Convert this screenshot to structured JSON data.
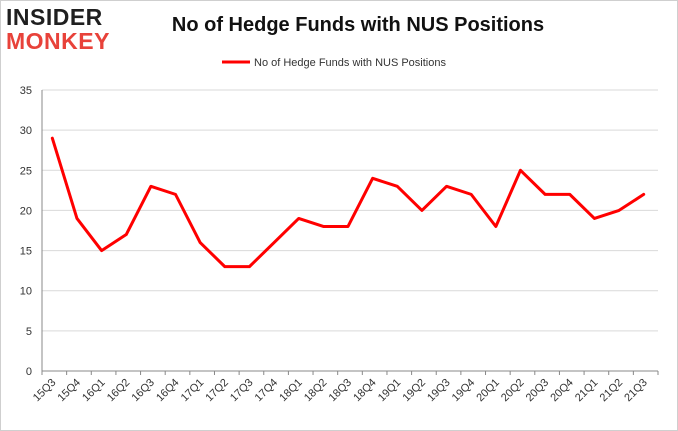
{
  "logo": {
    "line1": "INSIDER",
    "line2": "MONKEY"
  },
  "colors": {
    "series": "#ff0000",
    "grid": "#d9d9d9",
    "axis": "#888888",
    "logo_dark": "#1f1f1f",
    "logo_accent": "#e8423a"
  },
  "chart_data": {
    "type": "line",
    "title": "No of Hedge Funds with NUS Positions",
    "xlabel": "",
    "ylabel": "",
    "ylim": [
      0,
      35
    ],
    "yticks": [
      0,
      5,
      10,
      15,
      20,
      25,
      30,
      35
    ],
    "grid": true,
    "legend_position": "top-center",
    "categories": [
      "15Q3",
      "15Q4",
      "16Q1",
      "16Q2",
      "16Q3",
      "16Q4",
      "17Q1",
      "17Q2",
      "17Q3",
      "17Q4",
      "18Q1",
      "18Q2",
      "18Q3",
      "18Q4",
      "19Q1",
      "19Q2",
      "19Q3",
      "19Q4",
      "20Q1",
      "20Q2",
      "20Q3",
      "20Q4",
      "21Q1",
      "21Q2",
      "21Q3"
    ],
    "series": [
      {
        "name": "No of Hedge Funds with NUS Positions",
        "values": [
          29,
          19,
          15,
          17,
          23,
          22,
          16,
          13,
          13,
          16,
          19,
          18,
          18,
          24,
          23,
          20,
          23,
          22,
          18,
          25,
          22,
          22,
          19,
          20,
          22
        ]
      }
    ]
  }
}
